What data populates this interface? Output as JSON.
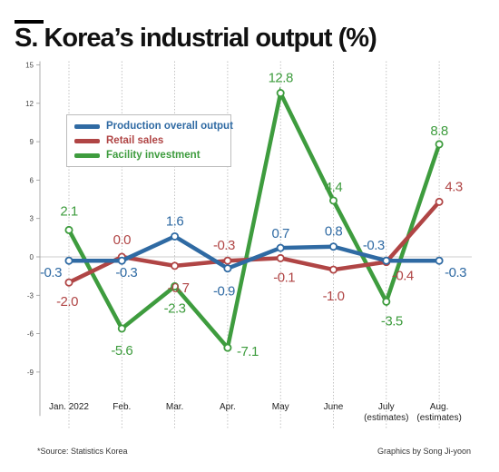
{
  "title": "S. Korea’s industrial output (%)",
  "source": "*Source: Statistics Korea",
  "credit": "Graphics by Song Ji-yoon",
  "chart_data": {
    "type": "line",
    "categories": [
      [
        "Jan. 2022"
      ],
      [
        "Feb."
      ],
      [
        "Mar."
      ],
      [
        "Apr."
      ],
      [
        "May"
      ],
      [
        "June"
      ],
      [
        "July",
        "(estimates)"
      ],
      [
        "Aug.",
        "(estimates)"
      ]
    ],
    "ylim": [
      -12,
      15
    ],
    "yticks": [
      -9,
      -6,
      -3,
      0,
      3,
      6,
      9,
      12,
      15
    ],
    "grid": "vertical dotted lines",
    "legend_position": "top-left",
    "series": [
      {
        "name": "Production overall output",
        "color": "#2f6aa3",
        "values": [
          -0.3,
          -0.3,
          1.6,
          -0.9,
          0.7,
          0.8,
          -0.3,
          -0.3
        ],
        "labels": [
          "-0.3",
          "-0.3",
          "1.6",
          "-0.9",
          "0.7",
          "0.8",
          "-0.3",
          "-0.3"
        ]
      },
      {
        "name": "Retail sales",
        "color": "#b04545",
        "values": [
          -2.0,
          0.0,
          -0.7,
          -0.3,
          -0.1,
          -1.0,
          -0.4,
          4.3
        ],
        "labels": [
          "-2.0",
          "0.0",
          "-0.7",
          "-0.3",
          "-0.1",
          "-1.0",
          "-0.4",
          "4.3"
        ]
      },
      {
        "name": "Facility investment",
        "color": "#3e9c3e",
        "values": [
          2.1,
          -5.6,
          -2.3,
          -7.1,
          12.8,
          4.4,
          -3.5,
          8.8
        ],
        "labels": [
          "2.1",
          "-5.6",
          "-2.3",
          "-7.1",
          "12.8",
          "4.4",
          "-3.5",
          "8.8"
        ]
      }
    ]
  }
}
